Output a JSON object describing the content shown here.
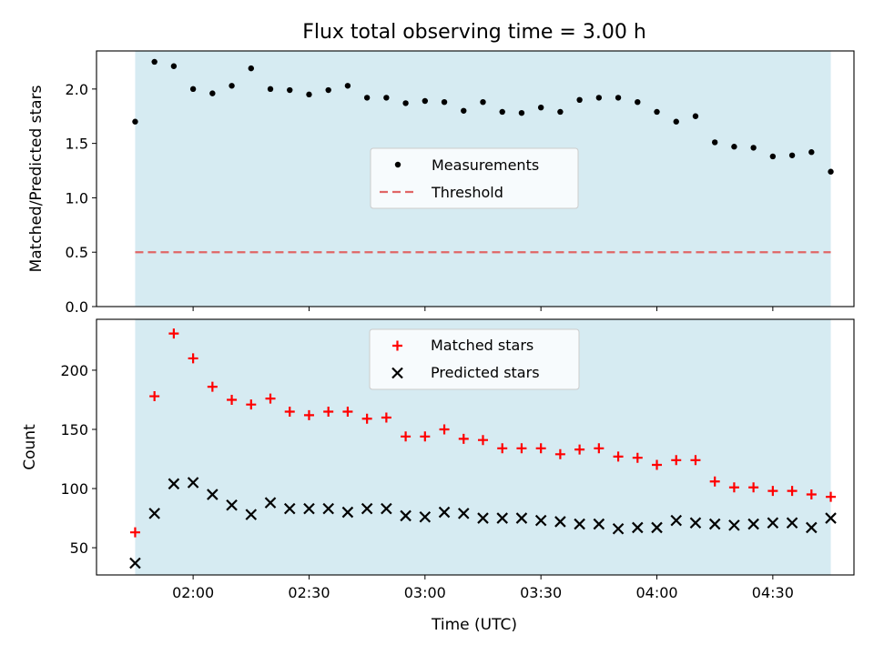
{
  "title": "Flux total observing time = 3.00 h",
  "colors": {
    "shade": "#add8e6",
    "threshold": "#e06666",
    "matched": "#ff0000",
    "predicted": "#000000",
    "measurements": "#000000"
  },
  "x_axis": {
    "label": "Time (UTC)",
    "ticks": [
      "02:00",
      "02:30",
      "03:00",
      "03:30",
      "04:00",
      "04:30"
    ],
    "tick_values_min": [
      120,
      150,
      180,
      210,
      240,
      270
    ],
    "range_min": [
      95,
      291
    ],
    "shaded_span_min": [
      105,
      285
    ]
  },
  "chart_data": [
    {
      "type": "scatter",
      "panel": "top",
      "ylabel": "Matched/Predicted stars",
      "ylim": [
        0,
        2.35
      ],
      "yticks": [
        "0.0",
        "0.5",
        "1.0",
        "1.5",
        "2.0"
      ],
      "ytick_values": [
        0,
        0.5,
        1.0,
        1.5,
        2.0
      ],
      "legend_position": "center",
      "series": [
        {
          "name": "Measurements",
          "marker": "dot",
          "x": [
            105,
            110,
            115,
            120,
            125,
            130,
            135,
            140,
            145,
            150,
            155,
            160,
            165,
            170,
            175,
            180,
            185,
            190,
            195,
            200,
            205,
            210,
            215,
            220,
            225,
            230,
            235,
            240,
            245,
            250,
            255,
            260,
            265,
            270,
            275,
            280,
            285
          ],
          "y": [
            1.7,
            2.25,
            2.21,
            2.0,
            1.96,
            2.03,
            2.19,
            2.0,
            1.99,
            1.95,
            1.99,
            2.03,
            1.92,
            1.92,
            1.87,
            1.89,
            1.88,
            1.8,
            1.88,
            1.79,
            1.78,
            1.83,
            1.79,
            1.9,
            1.92,
            1.92,
            1.88,
            1.79,
            1.7,
            1.75,
            1.51,
            1.47,
            1.46,
            1.38,
            1.39,
            1.42,
            1.24
          ]
        },
        {
          "name": "Threshold",
          "marker": "dashed-line",
          "x": [
            105,
            285
          ],
          "y": [
            0.5,
            0.5
          ]
        }
      ]
    },
    {
      "type": "scatter",
      "panel": "bottom",
      "ylabel": "Count",
      "ylim": [
        27,
        243
      ],
      "yticks": [
        "50",
        "100",
        "150",
        "200"
      ],
      "ytick_values": [
        50,
        100,
        150,
        200
      ],
      "legend_position": "top-center",
      "series": [
        {
          "name": "Matched stars",
          "marker": "plus",
          "x": [
            105,
            110,
            115,
            120,
            125,
            130,
            135,
            140,
            145,
            150,
            155,
            160,
            165,
            170,
            175,
            180,
            185,
            190,
            195,
            200,
            205,
            210,
            215,
            220,
            225,
            230,
            235,
            240,
            245,
            250,
            255,
            260,
            265,
            270,
            275,
            280,
            285
          ],
          "y": [
            63,
            178,
            231,
            210,
            186,
            175,
            171,
            176,
            165,
            162,
            165,
            165,
            159,
            160,
            144,
            144,
            150,
            142,
            141,
            134,
            134,
            134,
            129,
            133,
            134,
            127,
            126,
            120,
            124,
            124,
            106,
            101,
            101,
            98,
            98,
            95,
            93
          ]
        },
        {
          "name": "Predicted stars",
          "marker": "x",
          "x": [
            105,
            110,
            115,
            120,
            125,
            130,
            135,
            140,
            145,
            150,
            155,
            160,
            165,
            170,
            175,
            180,
            185,
            190,
            195,
            200,
            205,
            210,
            215,
            220,
            225,
            230,
            235,
            240,
            245,
            250,
            255,
            260,
            265,
            270,
            275,
            280,
            285
          ],
          "y": [
            37,
            79,
            104,
            105,
            95,
            86,
            78,
            88,
            83,
            83,
            83,
            80,
            83,
            83,
            77,
            76,
            80,
            79,
            75,
            75,
            75,
            73,
            72,
            70,
            70,
            66,
            67,
            67,
            73,
            71,
            70,
            69,
            70,
            71,
            71,
            67,
            75
          ]
        }
      ]
    }
  ]
}
